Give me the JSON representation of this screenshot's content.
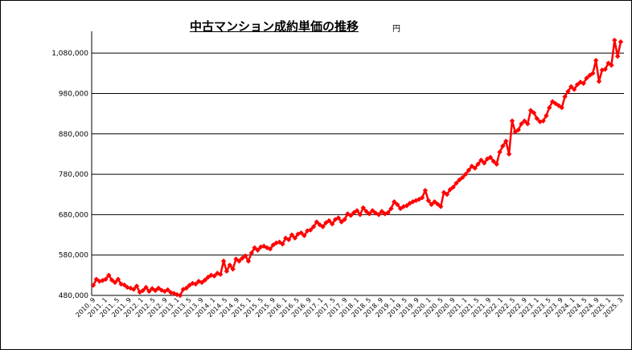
{
  "chart_data": {
    "type": "line",
    "title": "中古マンション成約単価の推移",
    "unit": "円",
    "ylim": [
      480000,
      1130000
    ],
    "y_ticks": [
      "480,000",
      "580,000",
      "680,000",
      "780,000",
      "880,000",
      "980,000",
      "1,080,000"
    ],
    "x_tick_labels": [
      "2010. 9",
      "2011. 1",
      "2011. 5",
      "2011. 9",
      "2012. 1",
      "2012. 5",
      "2012. 9",
      "2013. 1",
      "2013. 5",
      "2013. 9",
      "2014. 1",
      "2014. 5",
      "2014. 9",
      "2015. 1",
      "2015. 5",
      "2015. 9",
      "2016. 1",
      "2016. 5",
      "2016. 9",
      "2017. 1",
      "2017. 5",
      "2017. 9",
      "2018. 1",
      "2018. 5",
      "2018. 9",
      "2019. 1",
      "2019. 5",
      "2019. 9",
      "2020. 1",
      "2020. 5",
      "2020. 9",
      "2021. 1",
      "2021. 5",
      "2021. 9",
      "2022. 1",
      "2022. 5",
      "2022. 9",
      "2023. 1",
      "2023. 5",
      "2023. 9",
      "2024. 1",
      "2024. 5",
      "2024. 9",
      "2025. 1",
      "2025. 3"
    ],
    "grid": true,
    "legend": "none",
    "series_color": "#ff0000",
    "series": [
      {
        "values": [
          505000,
          520000,
          515000,
          517000,
          520000,
          530000,
          518000,
          512000,
          520000,
          508000,
          506000,
          500000,
          498000,
          495000,
          503000,
          488000,
          492000,
          500000,
          490000,
          497000,
          492000,
          498000,
          493000,
          490000,
          494000,
          487000,
          485000,
          482000,
          480000,
          495000,
          498000,
          505000,
          510000,
          508000,
          515000,
          512000,
          518000,
          525000,
          530000,
          528000,
          535000,
          532000,
          565000,
          540000,
          555000,
          545000,
          570000,
          565000,
          572000,
          578000,
          565000,
          585000,
          598000,
          592000,
          600000,
          602000,
          598000,
          595000,
          605000,
          610000,
          612000,
          607000,
          622000,
          618000,
          630000,
          622000,
          632000,
          635000,
          628000,
          640000,
          642000,
          650000,
          662000,
          655000,
          650000,
          660000,
          665000,
          657000,
          668000,
          672000,
          662000,
          668000,
          682000,
          678000,
          685000,
          690000,
          680000,
          697000,
          688000,
          682000,
          690000,
          684000,
          680000,
          688000,
          682000,
          685000,
          695000,
          712000,
          705000,
          695000,
          700000,
          702000,
          708000,
          712000,
          715000,
          718000,
          722000,
          740000,
          715000,
          705000,
          712000,
          706000,
          700000,
          735000,
          730000,
          742000,
          748000,
          758000,
          766000,
          772000,
          780000,
          790000,
          800000,
          795000,
          805000,
          815000,
          808000,
          818000,
          822000,
          812000,
          805000,
          835000,
          850000,
          862000,
          830000,
          912000,
          885000,
          890000,
          905000,
          912000,
          905000,
          938000,
          932000,
          918000,
          910000,
          912000,
          925000,
          945000,
          960000,
          955000,
          950000,
          945000,
          972000,
          985000,
          997000,
          990000,
          1002000,
          1008000,
          1005000,
          1018000,
          1025000,
          1030000,
          1062000,
          1010000,
          1038000,
          1040000,
          1055000,
          1050000,
          1112000,
          1072000,
          1108000
        ]
      }
    ]
  }
}
